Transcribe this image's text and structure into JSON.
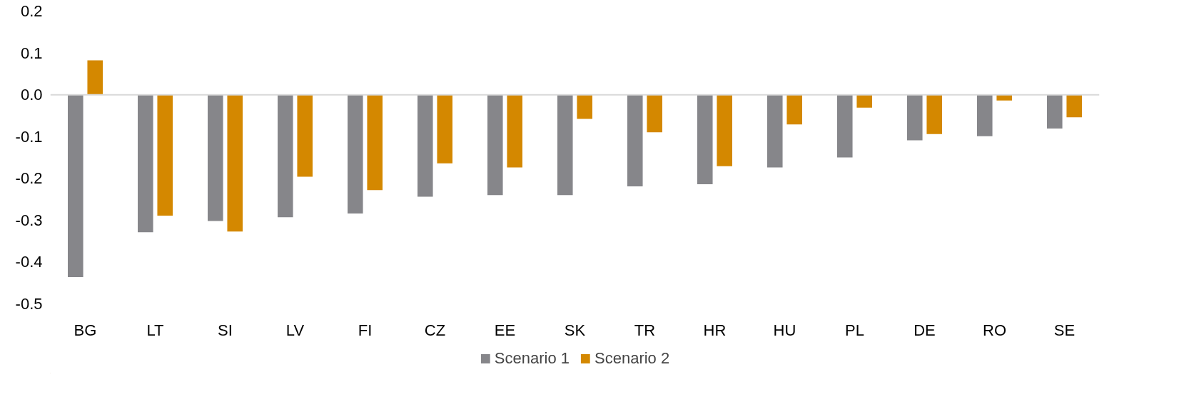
{
  "chart_data": {
    "type": "bar",
    "categories": [
      "BG",
      "LT",
      "SI",
      "LV",
      "FI",
      "CZ",
      "EE",
      "SK",
      "TR",
      "HR",
      "HU",
      "PL",
      "DE",
      "RO",
      "SE"
    ],
    "series": [
      {
        "name": "Scenario 1",
        "color": "#86868a",
        "values": [
          -0.436,
          -0.329,
          -0.302,
          -0.293,
          -0.284,
          -0.244,
          -0.24,
          -0.24,
          -0.219,
          -0.214,
          -0.174,
          -0.15,
          -0.109,
          -0.099,
          -0.081
        ]
      },
      {
        "name": "Scenario 2",
        "color": "#d48800",
        "values": [
          0.082,
          -0.289,
          -0.327,
          -0.196,
          -0.228,
          -0.164,
          -0.174,
          -0.058,
          -0.09,
          -0.171,
          -0.071,
          -0.031,
          -0.094,
          -0.014,
          -0.054
        ]
      }
    ],
    "ylim": [
      -0.5,
      0.2
    ],
    "yticks": [
      0.2,
      0.1,
      {
        "value": 0,
        "label": "0.0"
      },
      -0.1,
      -0.2,
      -0.3,
      -0.4,
      -0.5
    ],
    "ref_lines": [
      {
        "axis": "y",
        "value": 0,
        "color": "#d9d9d9"
      }
    ],
    "grid": false,
    "legend": "bottom"
  }
}
